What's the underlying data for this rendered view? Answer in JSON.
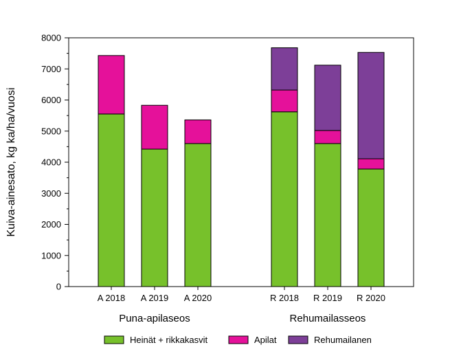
{
  "chart_data": {
    "type": "bar",
    "stacked": true,
    "title": "",
    "xlabel": "",
    "ylabel": "Kuiva-ainesato, kg ka/ha/vuosi",
    "ylim": [
      0,
      8000
    ],
    "yticks": [
      0,
      1000,
      2000,
      3000,
      4000,
      5000,
      6000,
      7000,
      8000
    ],
    "grid": false,
    "legend_position": "bottom",
    "categories": [
      "A 2018",
      "A 2019",
      "A 2020",
      "R 2018",
      "R 2019",
      "R 2020"
    ],
    "groups": [
      {
        "label": "Puna-apilaseos",
        "categories": [
          "A 2018",
          "A 2019",
          "A 2020"
        ]
      },
      {
        "label": "Rehumailasseos",
        "categories": [
          "R 2018",
          "R 2019",
          "R 2020"
        ]
      }
    ],
    "series": [
      {
        "name": "Heinät + rikkakasvit",
        "color": "#77c12b",
        "values": [
          5550,
          4420,
          4600,
          5620,
          4600,
          3780
        ]
      },
      {
        "name": "Apilat",
        "color": "#e5119a",
        "values": [
          1880,
          1410,
          760,
          700,
          420,
          330
        ]
      },
      {
        "name": "Rehumailanen",
        "color": "#7d3f98",
        "values": [
          0,
          0,
          0,
          1360,
          2100,
          3420
        ]
      }
    ]
  }
}
